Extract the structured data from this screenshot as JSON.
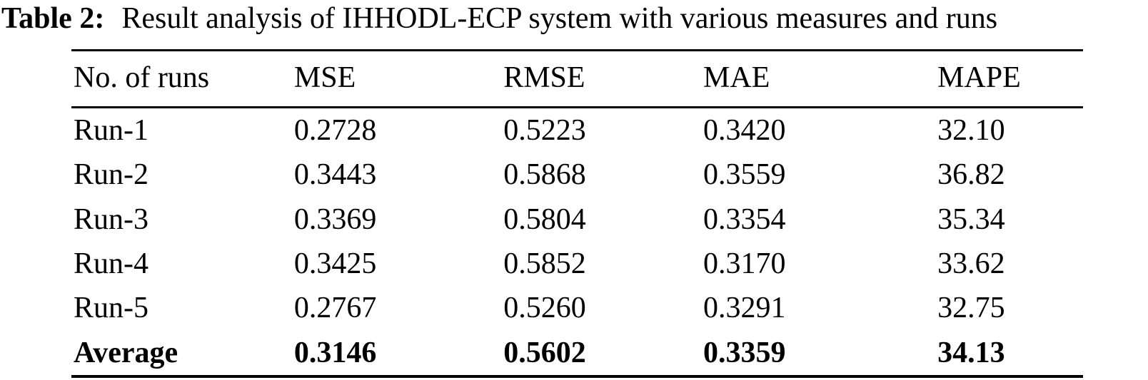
{
  "caption": {
    "label": "Table 2:",
    "text": "Result analysis of IHHODL-ECP system with various measures and runs"
  },
  "chart_data": {
    "type": "table",
    "title": "Table 2: Result analysis of IHHODL-ECP system with various measures and runs",
    "columns": [
      "No. of runs",
      "MSE",
      "RMSE",
      "MAE",
      "MAPE"
    ],
    "rows": [
      {
        "label": "Run-1",
        "MSE": "0.2728",
        "RMSE": "0.5223",
        "MAE": "0.3420",
        "MAPE": "32.10",
        "bold": false
      },
      {
        "label": "Run-2",
        "MSE": "0.3443",
        "RMSE": "0.5868",
        "MAE": "0.3559",
        "MAPE": "36.82",
        "bold": false
      },
      {
        "label": "Run-3",
        "MSE": "0.3369",
        "RMSE": "0.5804",
        "MAE": "0.3354",
        "MAPE": "35.34",
        "bold": false
      },
      {
        "label": "Run-4",
        "MSE": "0.3425",
        "RMSE": "0.5852",
        "MAE": "0.3170",
        "MAPE": "33.62",
        "bold": false
      },
      {
        "label": "Run-5",
        "MSE": "0.2767",
        "RMSE": "0.5260",
        "MAE": "0.3291",
        "MAPE": "32.75",
        "bold": false
      },
      {
        "label": "Average",
        "MSE": "0.3146",
        "RMSE": "0.5602",
        "MAE": "0.3359",
        "MAPE": "34.13",
        "bold": true
      }
    ]
  },
  "colors": {
    "background": "#ffffff",
    "text": "#000000",
    "rule": "#000000"
  }
}
